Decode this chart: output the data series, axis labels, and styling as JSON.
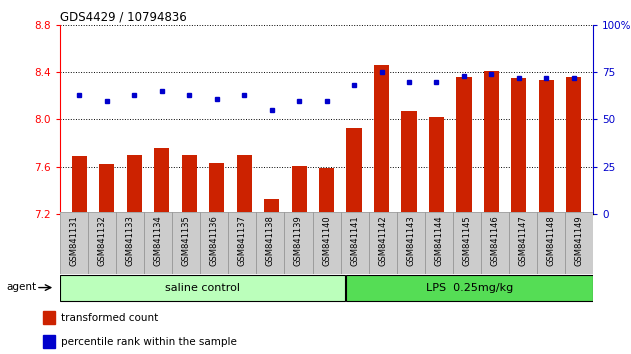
{
  "title": "GDS4429 / 10794836",
  "samples": [
    "GSM841131",
    "GSM841132",
    "GSM841133",
    "GSM841134",
    "GSM841135",
    "GSM841136",
    "GSM841137",
    "GSM841138",
    "GSM841139",
    "GSM841140",
    "GSM841141",
    "GSM841142",
    "GSM841143",
    "GSM841144",
    "GSM841145",
    "GSM841146",
    "GSM841147",
    "GSM841148",
    "GSM841149"
  ],
  "red_values": [
    7.69,
    7.62,
    7.7,
    7.76,
    7.7,
    7.63,
    7.7,
    7.33,
    7.61,
    7.59,
    7.93,
    8.46,
    8.07,
    8.02,
    8.36,
    8.41,
    8.35,
    8.33,
    8.36
  ],
  "blue_values": [
    63,
    60,
    63,
    65,
    63,
    61,
    63,
    55,
    60,
    60,
    68,
    75,
    70,
    70,
    73,
    74,
    72,
    72,
    72
  ],
  "ylim_left": [
    7.2,
    8.8
  ],
  "ylim_right": [
    0,
    100
  ],
  "yticks_left": [
    7.2,
    7.6,
    8.0,
    8.4,
    8.8
  ],
  "yticks_right": [
    0,
    25,
    50,
    75,
    100
  ],
  "yticklabels_right": [
    "0",
    "25",
    "50",
    "75",
    "100%"
  ],
  "group1_label": "saline control",
  "group2_label": "LPS  0.25mg/kg",
  "group1_count": 10,
  "group2_count": 9,
  "bar_color": "#cc2200",
  "dot_color": "#0000cc",
  "agent_label": "agent",
  "legend_bar": "transformed count",
  "legend_dot": "percentile rank within the sample",
  "group1_bg": "#bbffbb",
  "group2_bg": "#55dd55",
  "xlabel_bg": "#cccccc",
  "bar_width": 0.55
}
